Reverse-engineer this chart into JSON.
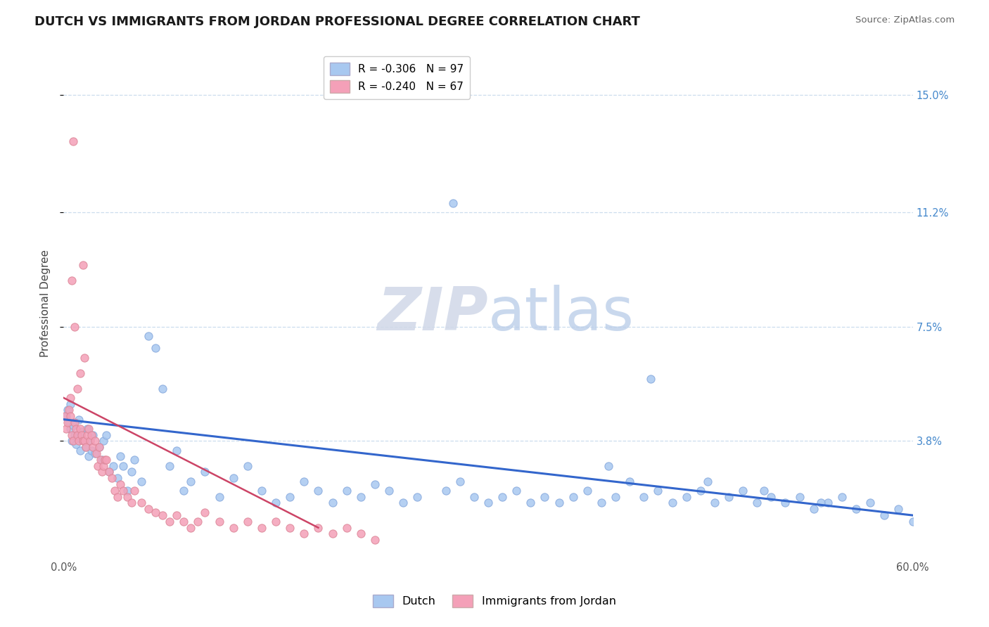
{
  "title": "DUTCH VS IMMIGRANTS FROM JORDAN PROFESSIONAL DEGREE CORRELATION CHART",
  "source": "Source: ZipAtlas.com",
  "ylabel": "Professional Degree",
  "right_yticks": [
    "15.0%",
    "11.2%",
    "7.5%",
    "3.8%"
  ],
  "right_ytick_vals": [
    0.15,
    0.112,
    0.075,
    0.038
  ],
  "dutch_color": "#a8c8f0",
  "jordan_color": "#f4a0b8",
  "dutch_line_color": "#3366cc",
  "jordan_line_color": "#cc4466",
  "background_color": "#ffffff",
  "grid_color": "#ccddee",
  "xlim": [
    0.0,
    0.6
  ],
  "ylim": [
    0.0,
    0.165
  ],
  "dutch_scatter_x": [
    0.002,
    0.003,
    0.004,
    0.005,
    0.005,
    0.006,
    0.007,
    0.008,
    0.009,
    0.01,
    0.011,
    0.012,
    0.013,
    0.015,
    0.016,
    0.017,
    0.018,
    0.019,
    0.02,
    0.021,
    0.022,
    0.025,
    0.027,
    0.028,
    0.03,
    0.032,
    0.035,
    0.038,
    0.04,
    0.042,
    0.045,
    0.048,
    0.05,
    0.055,
    0.06,
    0.065,
    0.07,
    0.075,
    0.08,
    0.085,
    0.09,
    0.1,
    0.11,
    0.12,
    0.13,
    0.14,
    0.15,
    0.16,
    0.17,
    0.18,
    0.19,
    0.2,
    0.21,
    0.22,
    0.23,
    0.24,
    0.25,
    0.27,
    0.28,
    0.29,
    0.3,
    0.31,
    0.32,
    0.33,
    0.34,
    0.35,
    0.36,
    0.37,
    0.38,
    0.39,
    0.4,
    0.41,
    0.42,
    0.43,
    0.44,
    0.45,
    0.46,
    0.47,
    0.48,
    0.49,
    0.5,
    0.51,
    0.52,
    0.53,
    0.54,
    0.55,
    0.56,
    0.57,
    0.58,
    0.59,
    0.6,
    0.385,
    0.415,
    0.455,
    0.495,
    0.535,
    0.275
  ],
  "dutch_scatter_y": [
    0.046,
    0.048,
    0.044,
    0.042,
    0.05,
    0.038,
    0.043,
    0.04,
    0.037,
    0.039,
    0.045,
    0.035,
    0.041,
    0.038,
    0.036,
    0.042,
    0.033,
    0.038,
    0.035,
    0.04,
    0.034,
    0.036,
    0.032,
    0.038,
    0.04,
    0.028,
    0.03,
    0.026,
    0.033,
    0.03,
    0.022,
    0.028,
    0.032,
    0.025,
    0.072,
    0.068,
    0.055,
    0.03,
    0.035,
    0.022,
    0.025,
    0.028,
    0.02,
    0.026,
    0.03,
    0.022,
    0.018,
    0.02,
    0.025,
    0.022,
    0.018,
    0.022,
    0.02,
    0.024,
    0.022,
    0.018,
    0.02,
    0.022,
    0.025,
    0.02,
    0.018,
    0.02,
    0.022,
    0.018,
    0.02,
    0.018,
    0.02,
    0.022,
    0.018,
    0.02,
    0.025,
    0.02,
    0.022,
    0.018,
    0.02,
    0.022,
    0.018,
    0.02,
    0.022,
    0.018,
    0.02,
    0.018,
    0.02,
    0.016,
    0.018,
    0.02,
    0.016,
    0.018,
    0.014,
    0.016,
    0.012,
    0.03,
    0.058,
    0.025,
    0.022,
    0.018,
    0.115
  ],
  "jordan_scatter_x": [
    0.001,
    0.002,
    0.003,
    0.004,
    0.005,
    0.005,
    0.006,
    0.007,
    0.008,
    0.009,
    0.01,
    0.011,
    0.012,
    0.013,
    0.014,
    0.015,
    0.016,
    0.017,
    0.018,
    0.019,
    0.02,
    0.021,
    0.022,
    0.023,
    0.024,
    0.025,
    0.026,
    0.027,
    0.028,
    0.029,
    0.03,
    0.032,
    0.034,
    0.036,
    0.038,
    0.04,
    0.042,
    0.045,
    0.048,
    0.05,
    0.055,
    0.06,
    0.065,
    0.07,
    0.075,
    0.08,
    0.085,
    0.09,
    0.095,
    0.1,
    0.11,
    0.12,
    0.13,
    0.14,
    0.15,
    0.16,
    0.17,
    0.18,
    0.19,
    0.2,
    0.21,
    0.22,
    0.01,
    0.012,
    0.015,
    0.008,
    0.006
  ],
  "jordan_scatter_y": [
    0.046,
    0.042,
    0.044,
    0.048,
    0.046,
    0.052,
    0.04,
    0.038,
    0.044,
    0.042,
    0.04,
    0.038,
    0.042,
    0.04,
    0.038,
    0.038,
    0.036,
    0.04,
    0.042,
    0.038,
    0.04,
    0.036,
    0.038,
    0.034,
    0.03,
    0.036,
    0.032,
    0.028,
    0.03,
    0.032,
    0.032,
    0.028,
    0.026,
    0.022,
    0.02,
    0.024,
    0.022,
    0.02,
    0.018,
    0.022,
    0.018,
    0.016,
    0.015,
    0.014,
    0.012,
    0.014,
    0.012,
    0.01,
    0.012,
    0.015,
    0.012,
    0.01,
    0.012,
    0.01,
    0.012,
    0.01,
    0.008,
    0.01,
    0.008,
    0.01,
    0.008,
    0.006,
    0.055,
    0.06,
    0.065,
    0.075,
    0.09
  ],
  "jordan_outlier_x": [
    0.007
  ],
  "jordan_outlier_y": [
    0.135
  ],
  "jordan_outlier2_x": [
    0.014
  ],
  "jordan_outlier2_y": [
    0.095
  ],
  "dutch_line_x0": 0.0,
  "dutch_line_y0": 0.045,
  "dutch_line_x1": 0.6,
  "dutch_line_y1": 0.014,
  "jordan_line_x0": 0.0,
  "jordan_line_y0": 0.052,
  "jordan_line_x1": 0.18,
  "jordan_line_y1": 0.01
}
